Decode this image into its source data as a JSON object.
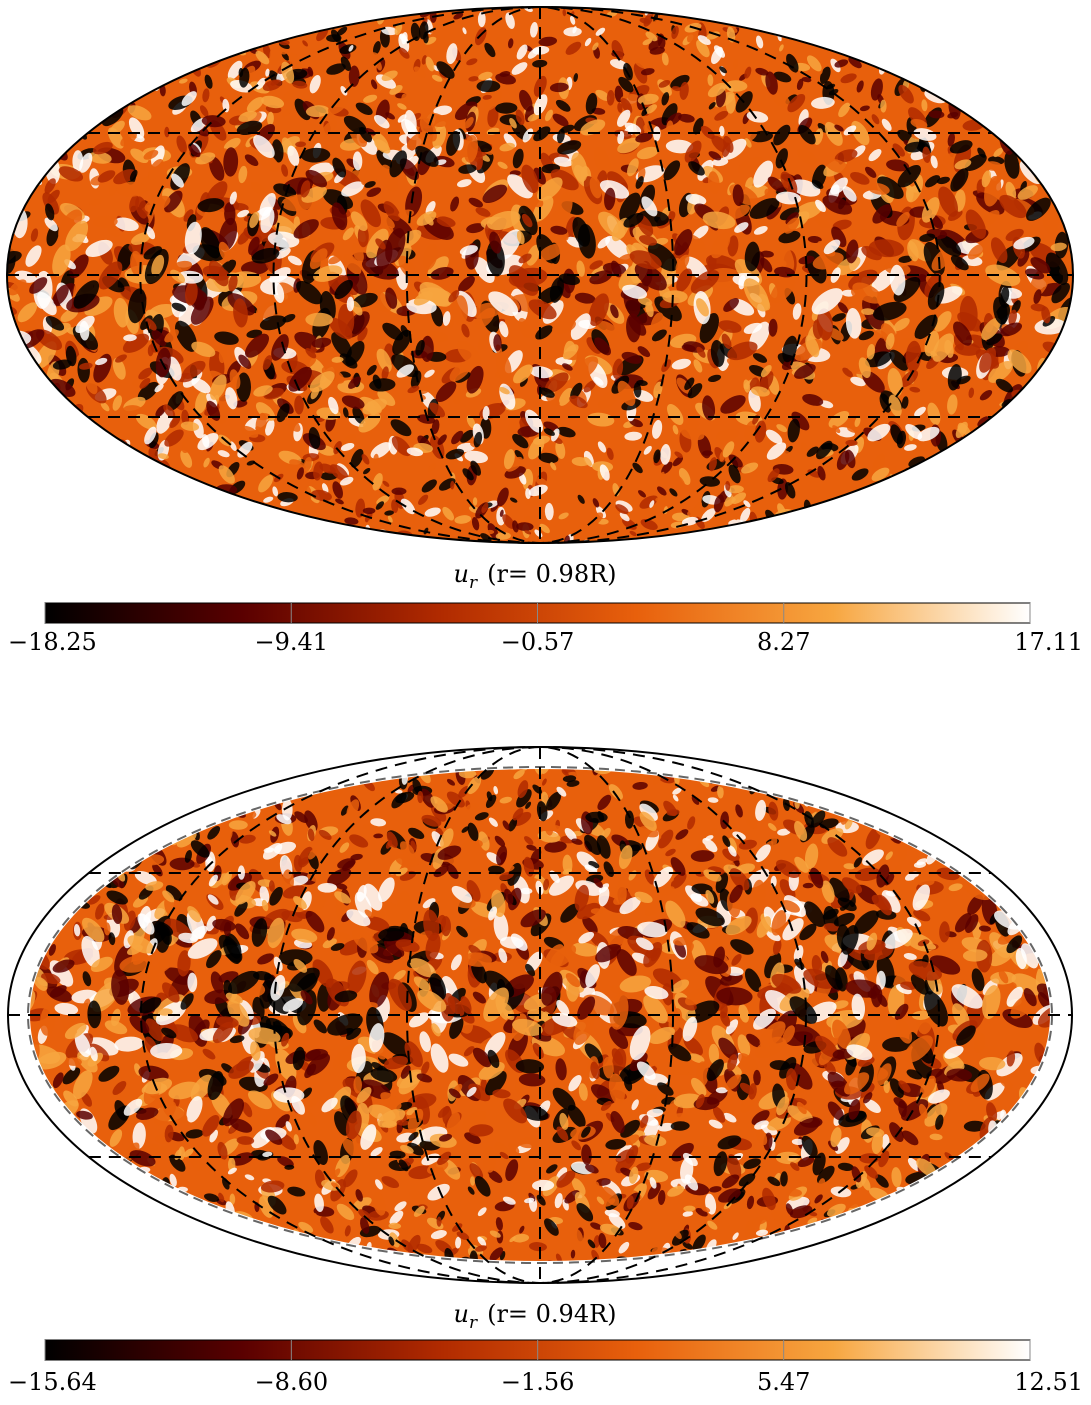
{
  "chart_data": [
    {
      "type": "mollweide_map",
      "title_symbol": "u",
      "title_subscript": "r",
      "title_rest": "(r= 0.98R)",
      "zlim": [
        -18.25,
        17.11
      ],
      "zticks": [
        {
          "value": -18.25,
          "label": "−18.25"
        },
        {
          "value": -9.41,
          "label": "−9.41"
        },
        {
          "value": -0.57,
          "label": "−0.57"
        },
        8.27,
        17.11
      ],
      "colormap": [
        "#000000",
        "#5a0000",
        "#b02a00",
        "#e8600c",
        "#f7a640",
        "#ffffff"
      ],
      "grid": true
    },
    {
      "type": "mollweide_map",
      "title_symbol": "u",
      "title_subscript": "r",
      "title_rest": "(r= 0.94R)",
      "zlim": [
        -15.64,
        12.51
      ],
      "zticks": [
        {
          "value": -15.64,
          "label": "−15.64"
        },
        {
          "value": -8.6,
          "label": "−8.60"
        },
        {
          "value": -1.56,
          "label": "−1.56"
        },
        5.47,
        12.51
      ],
      "colormap": [
        "#000000",
        "#5a0000",
        "#b02a00",
        "#e8600c",
        "#f7a640",
        "#ffffff"
      ],
      "grid": true
    }
  ]
}
